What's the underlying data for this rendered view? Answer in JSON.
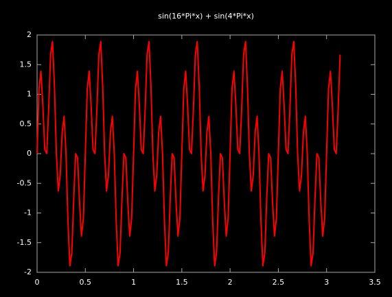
{
  "chart_data": {
    "type": "line",
    "title": "sin(16*Pi*x) + sin(4*Pi*x)",
    "color": "#ff0000",
    "x": [
      0,
      0.02,
      0.04,
      0.06,
      0.08,
      0.1,
      0.12,
      0.14,
      0.16,
      0.18,
      0.2,
      0.22,
      0.24,
      0.26,
      0.28,
      0.3,
      0.32,
      0.34,
      0.36,
      0.38,
      0.4,
      0.42,
      0.44,
      0.46,
      0.48,
      0.5,
      0.52,
      0.54,
      0.56,
      0.58,
      0.6,
      0.62,
      0.64,
      0.66,
      0.68,
      0.7,
      0.72,
      0.74,
      0.76,
      0.78,
      0.8,
      0.82,
      0.84,
      0.86,
      0.88,
      0.9,
      0.92,
      0.94,
      0.96,
      0.98,
      1,
      1.02,
      1.04,
      1.06,
      1.08,
      1.1,
      1.12,
      1.14,
      1.16,
      1.18,
      1.2,
      1.22,
      1.24,
      1.26,
      1.28,
      1.3,
      1.32,
      1.34,
      1.36,
      1.38,
      1.4,
      1.42,
      1.44,
      1.46,
      1.48,
      1.5,
      1.52,
      1.54,
      1.56,
      1.58,
      1.6,
      1.62,
      1.64,
      1.66,
      1.68,
      1.7,
      1.72,
      1.74,
      1.76,
      1.78,
      1.8,
      1.82,
      1.84,
      1.86,
      1.88,
      1.9,
      1.92,
      1.94,
      1.96,
      1.98,
      2,
      2.02,
      2.04,
      2.06,
      2.08,
      2.1,
      2.12,
      2.14,
      2.16,
      2.18,
      2.2,
      2.22,
      2.24,
      2.26,
      2.28,
      2.3,
      2.32,
      2.34,
      2.36,
      2.38,
      2.4,
      2.42,
      2.44,
      2.46,
      2.48,
      2.5,
      2.52,
      2.54,
      2.56,
      2.58,
      2.6,
      2.62,
      2.64,
      2.66,
      2.68,
      2.7,
      2.72,
      2.74,
      2.76,
      2.78,
      2.8,
      2.82,
      2.84,
      2.86,
      2.88,
      2.9,
      2.92,
      2.94,
      2.96,
      2.98,
      3,
      3.02,
      3.04,
      3.06,
      3.08,
      3.1,
      3.12,
      3.14
    ],
    "values": [
      0,
      1.09,
      1.39,
      0.81,
      0.07,
      0,
      0.75,
      1.67,
      1.89,
      1.14,
      0,
      -0.63,
      -0.36,
      0.36,
      0.63,
      0,
      -1.14,
      -1.89,
      -1.67,
      -0.75,
      0,
      -0.07,
      -0.81,
      -1.39,
      -1.09,
      0,
      1.09,
      1.39,
      0.81,
      0.07,
      0,
      0.75,
      1.67,
      1.89,
      1.14,
      0,
      -0.63,
      -0.36,
      0.36,
      0.63,
      0,
      -1.14,
      -1.89,
      -1.67,
      -0.75,
      0,
      -0.07,
      -0.81,
      -1.39,
      -1.09,
      0,
      1.09,
      1.39,
      0.81,
      0.07,
      0,
      0.75,
      1.67,
      1.89,
      1.14,
      0,
      -0.63,
      -0.36,
      0.36,
      0.63,
      0,
      -1.14,
      -1.89,
      -1.67,
      -0.75,
      0,
      -0.07,
      -0.81,
      -1.39,
      -1.09,
      0,
      1.09,
      1.39,
      0.81,
      0.07,
      0,
      0.75,
      1.67,
      1.89,
      1.14,
      0,
      -0.63,
      -0.36,
      0.36,
      0.63,
      0,
      -1.14,
      -1.89,
      -1.67,
      -0.75,
      0,
      -0.07,
      -0.81,
      -1.39,
      -1.09,
      0,
      1.09,
      1.39,
      0.81,
      0.07,
      0,
      0.75,
      1.67,
      1.89,
      1.14,
      0,
      -0.63,
      -0.36,
      0.36,
      0.63,
      0,
      -1.14,
      -1.89,
      -1.67,
      -0.75,
      0,
      -0.07,
      -0.81,
      -1.39,
      -1.09,
      0,
      1.09,
      1.39,
      0.81,
      0.07,
      0,
      0.75,
      1.67,
      1.89,
      1.14,
      0,
      -0.63,
      -0.36,
      0.36,
      0.63,
      0,
      -1.14,
      -1.89,
      -1.67,
      -0.75,
      0,
      -0.07,
      -0.81,
      -1.39,
      -1.09,
      0,
      1.09,
      1.39,
      0.81,
      0.07,
      0,
      0.75,
      1.67
    ],
    "xlim": [
      0,
      3.5
    ],
    "xticks": [
      0,
      0.5,
      1,
      1.5,
      2,
      2.5,
      3,
      3.5
    ],
    "ylim": [
      -2,
      2
    ],
    "yticks": [
      -2,
      -1.5,
      -1,
      -0.5,
      0,
      0.5,
      1,
      1.5,
      2
    ]
  }
}
